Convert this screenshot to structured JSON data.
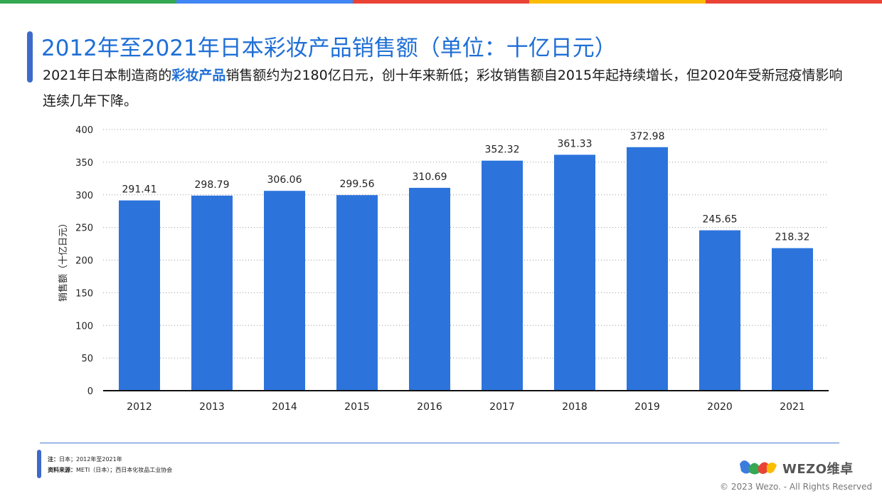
{
  "topbar_colors": [
    "#34a853",
    "#4285f4",
    "#ea4335",
    "#fbbc05",
    "#ea4335"
  ],
  "header": {
    "title": "2012年至2021年日本彩妆产品销售额（单位：十亿日元）",
    "desc_prefix": " 2021年日本制造商的",
    "desc_highlight": "彩妆产品",
    "desc_suffix": "销售额约为2180亿日元，创十年来新低；彩妆销售额自2015年起持续增长，但2020年受新冠疫情影响连续几年下降。"
  },
  "chart_data": {
    "type": "bar",
    "title": "",
    "xlabel": "",
    "ylabel": "销售额（十亿日元）",
    "categories": [
      "2012",
      "2013",
      "2014",
      "2015",
      "2016",
      "2017",
      "2018",
      "2019",
      "2020",
      "2021"
    ],
    "values": [
      291.41,
      298.79,
      306.06,
      299.56,
      310.69,
      352.32,
      361.33,
      372.98,
      245.65,
      218.32
    ],
    "value_labels": [
      "291.41",
      "298.79",
      "306.06",
      "299.56",
      "310.69",
      "352.32",
      "361.33",
      "372.98",
      "245.65",
      "218.32"
    ],
    "ylim": [
      0,
      400
    ],
    "yticks": [
      0,
      50,
      100,
      150,
      200,
      250,
      300,
      350,
      400
    ],
    "grid": true,
    "grid_style": "dotted",
    "bar_color": "#2c74dc",
    "data_labels": true
  },
  "footer": {
    "note_label": "注：",
    "note_text": "日本；2012年至2021年",
    "source_label": "资料来源：",
    "source_text": "METI（日本）；西日本化妆品工业协会",
    "brand": "WEZO维卓",
    "copyright": "© 2023 Wezo. - All Rights Reserved"
  }
}
